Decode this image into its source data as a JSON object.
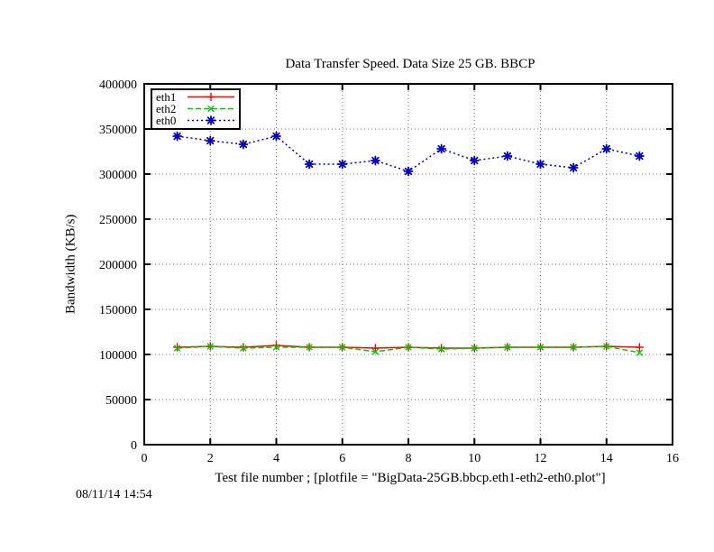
{
  "footer": {
    "timestamp": "08/11/14 14:54"
  },
  "chart_data": {
    "type": "line",
    "title": "Data Transfer Speed. Data Size 25 GB. BBCP",
    "xlabel": "Test file number ; [plotfile = \"BigData-25GB.bbcp.eth1-eth2-eth0.plot\"]",
    "ylabel": "Bandwidth (KB/s)",
    "xlim": [
      0,
      16
    ],
    "ylim": [
      0,
      400000
    ],
    "x_ticks": [
      0,
      2,
      4,
      6,
      8,
      10,
      12,
      14,
      16
    ],
    "x_tick_labels": [
      "0",
      "2",
      "4",
      "6",
      "8",
      "10",
      "12",
      "14",
      "16"
    ],
    "y_ticks": [
      0,
      50000,
      100000,
      150000,
      200000,
      250000,
      300000,
      350000,
      400000
    ],
    "y_tick_labels": [
      "0",
      "50000",
      "100000",
      "150000",
      "200000",
      "250000",
      "300000",
      "350000",
      "400000"
    ],
    "grid": true,
    "legend_position": "top-left",
    "x": [
      1,
      2,
      3,
      4,
      5,
      6,
      7,
      8,
      9,
      10,
      11,
      12,
      13,
      14,
      15
    ],
    "series": [
      {
        "name": "eth1",
        "color": "#ff0000",
        "dash": "solid",
        "marker": "plus",
        "values": [
          108000,
          109000,
          108000,
          110000,
          108000,
          108000,
          107000,
          108000,
          107000,
          107000,
          108000,
          108000,
          108000,
          109000,
          108000
        ]
      },
      {
        "name": "eth2",
        "color": "#00cc00",
        "dash": "dashed",
        "marker": "cross",
        "values": [
          107000,
          109000,
          107000,
          108000,
          108000,
          108000,
          103000,
          108000,
          106000,
          107000,
          108000,
          108000,
          108000,
          109000,
          102000
        ]
      },
      {
        "name": "eth0",
        "color": "#0000cc",
        "dash": "dotted",
        "marker": "asterisk",
        "values": [
          342000,
          337000,
          333000,
          342000,
          311000,
          311000,
          315000,
          303000,
          328000,
          315000,
          320000,
          311000,
          307000,
          328000,
          320000
        ]
      }
    ]
  }
}
